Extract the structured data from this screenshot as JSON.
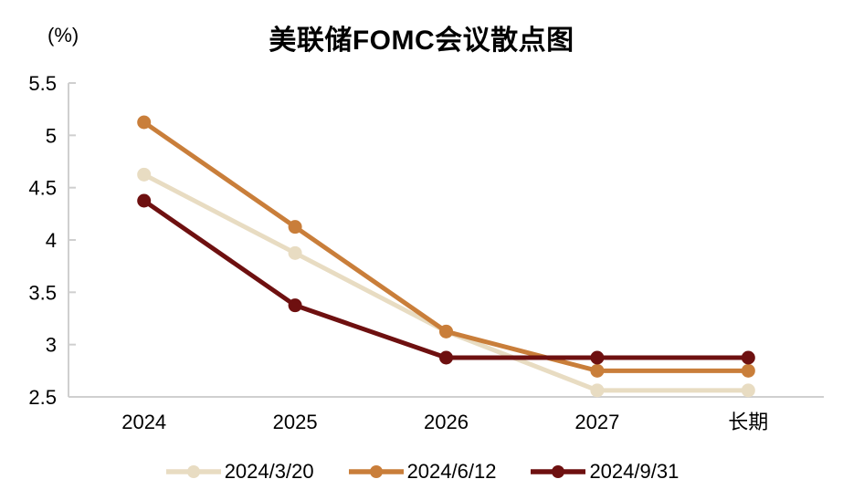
{
  "chart_data": {
    "type": "line",
    "title": "美联储FOMC会议散点图",
    "ylabel_unit": "(%)",
    "xlabel": "",
    "categories": [
      "2024",
      "2025",
      "2026",
      "2027",
      "长期"
    ],
    "series": [
      {
        "name": "2024/3/20",
        "color": "#e8dcc2",
        "values": [
          4.625,
          3.875,
          3.125,
          2.5625,
          2.5625
        ]
      },
      {
        "name": "2024/6/12",
        "color": "#c97e3a",
        "values": [
          5.125,
          4.125,
          3.125,
          2.75,
          2.75
        ]
      },
      {
        "name": "2024/9/31",
        "color": "#6e1010",
        "values": [
          4.375,
          3.375,
          2.875,
          2.875,
          2.875
        ]
      }
    ],
    "ylim": [
      2.5,
      5.5
    ],
    "ytick_labels": [
      "2.5",
      "3",
      "3.5",
      "4",
      "4.5",
      "5",
      "5.5"
    ],
    "grid": false,
    "legend_position": "bottom",
    "axis_color": "#cfcfcf",
    "text_color": "#000000"
  }
}
